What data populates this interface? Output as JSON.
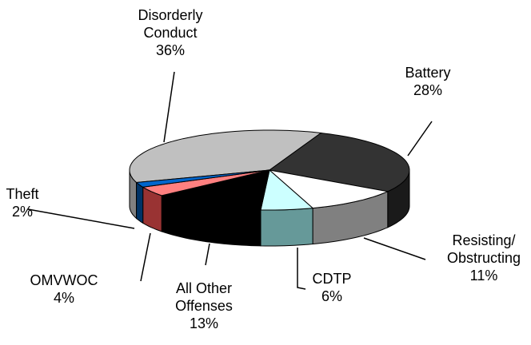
{
  "chart_data": {
    "type": "pie3d",
    "categories": [
      "Disorderly Conduct",
      "Battery",
      "Resisting/ Obstructing",
      "CDTP",
      "All Other Offenses",
      "OMVWOC",
      "Theft"
    ],
    "values": [
      36,
      28,
      11,
      6,
      13,
      4,
      2
    ],
    "value_labels": [
      "36%",
      "28%",
      "11%",
      "6%",
      "13%",
      "4%",
      "2%"
    ],
    "colors": [
      "#c0c0c0",
      "#333333",
      "#ffffff",
      "#ccffff",
      "#000000",
      "#ff8080",
      "#0066cc"
    ],
    "side_colors": [
      "#808080",
      "#1a1a1a",
      "#808080",
      "#669999",
      "#000000",
      "#993333",
      "#003366"
    ]
  }
}
